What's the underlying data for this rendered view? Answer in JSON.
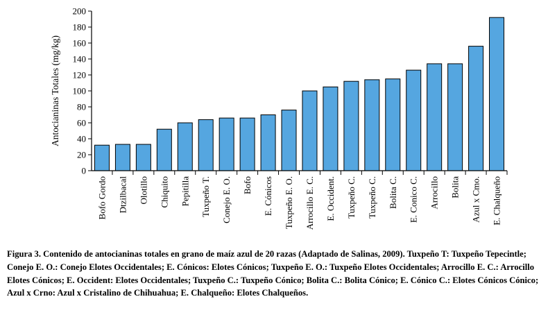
{
  "chart_data": {
    "type": "bar",
    "title": "",
    "xlabel": "",
    "ylabel": "Antocianinas Totales (mg/kg)",
    "ylim": [
      0,
      200
    ],
    "yticks": [
      "0",
      "20",
      "40",
      "60",
      "80",
      "100",
      "120",
      "140",
      "160",
      "180",
      "200"
    ],
    "categories": [
      "Bofo Gordo",
      "Dtzilbacal",
      "Olotillo",
      "Chiquito",
      "Pepitilla",
      "Tuxpeño T.",
      "Conejo E. O.",
      "Bofo",
      "E. Cónicos",
      "Tuxpeño E. O.",
      "Arrocillo E. C.",
      "E. Occident.",
      "Tuxpeño C.",
      "Tuxpeño C.",
      "Bolita C.",
      "E. Conico C.",
      "Arrocillo",
      "Bolita",
      "Azul x Cmo.",
      "E. Chalqueño"
    ],
    "values": [
      32,
      33,
      33,
      52,
      60,
      64,
      66,
      66,
      70,
      76,
      100,
      105,
      112,
      114,
      115,
      126,
      134,
      134,
      156,
      192
    ],
    "bar_color": "#55a6e0",
    "grid": false
  },
  "caption": "Figura 3. Contenido de antocianinas totales en grano de maíz azul de 20 razas (Adaptado de Salinas, 2009). Tuxpeño T: Tuxpeño Tepecintle; Conejo E. O.: Conejo Elotes Occidentales; E. Cónicos: Elotes Cónicos; Tuxpeño E. O.: Tuxpeño Elotes Occidentales; Arrocillo E. C.: Arrocillo Elotes Cónicos; E. Occident: Elotes Occidentales; Tuxpeño C.: Tuxpeño Cónico; Bolita C.: Bolita Cónico; E. Cónico C.: Elotes Cónicos Cónico; Azul x Crno: Azul x Cristalino de Chihuahua; E. Chalqueño: Elotes Chalqueños."
}
